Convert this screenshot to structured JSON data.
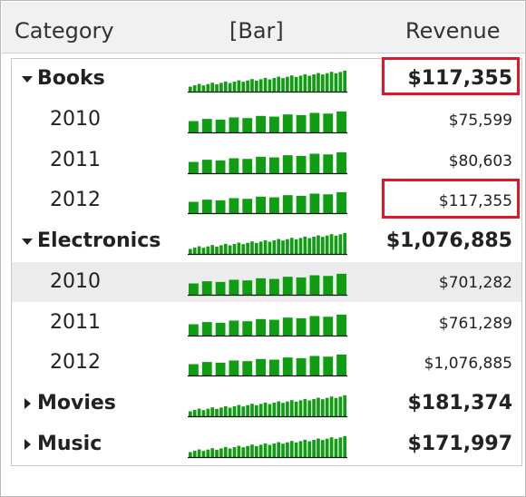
{
  "header": {
    "category": "Category",
    "bar": "[Bar]",
    "revenue": "Revenue"
  },
  "rows": [
    {
      "kind": "group",
      "expanded": true,
      "label": "Books",
      "revenue": "$117,355",
      "spark": "dense"
    },
    {
      "kind": "year",
      "label": "2010",
      "revenue": "$75,599",
      "spark": "year"
    },
    {
      "kind": "year",
      "label": "2011",
      "revenue": "$80,603",
      "spark": "year"
    },
    {
      "kind": "year",
      "label": "2012",
      "revenue": "$117,355",
      "spark": "year"
    },
    {
      "kind": "group",
      "expanded": true,
      "label": "Electronics",
      "revenue": "$1,076,885",
      "spark": "dense"
    },
    {
      "kind": "year",
      "label": "2010",
      "revenue": "$701,282",
      "spark": "year",
      "selected": true
    },
    {
      "kind": "year",
      "label": "2011",
      "revenue": "$761,289",
      "spark": "year"
    },
    {
      "kind": "year",
      "label": "2012",
      "revenue": "$1,076,885",
      "spark": "year"
    },
    {
      "kind": "group",
      "expanded": false,
      "label": "Movies",
      "revenue": "$181,374",
      "spark": "dense"
    },
    {
      "kind": "group",
      "expanded": false,
      "label": "Music",
      "revenue": "$171,997",
      "spark": "dense"
    }
  ],
  "highlighted_cells": [
    "Books total revenue",
    "Books 2012 revenue"
  ],
  "colors": {
    "bar": "#0f9d12",
    "highlight": "#e2162a",
    "selected_row": "#ececec"
  }
}
